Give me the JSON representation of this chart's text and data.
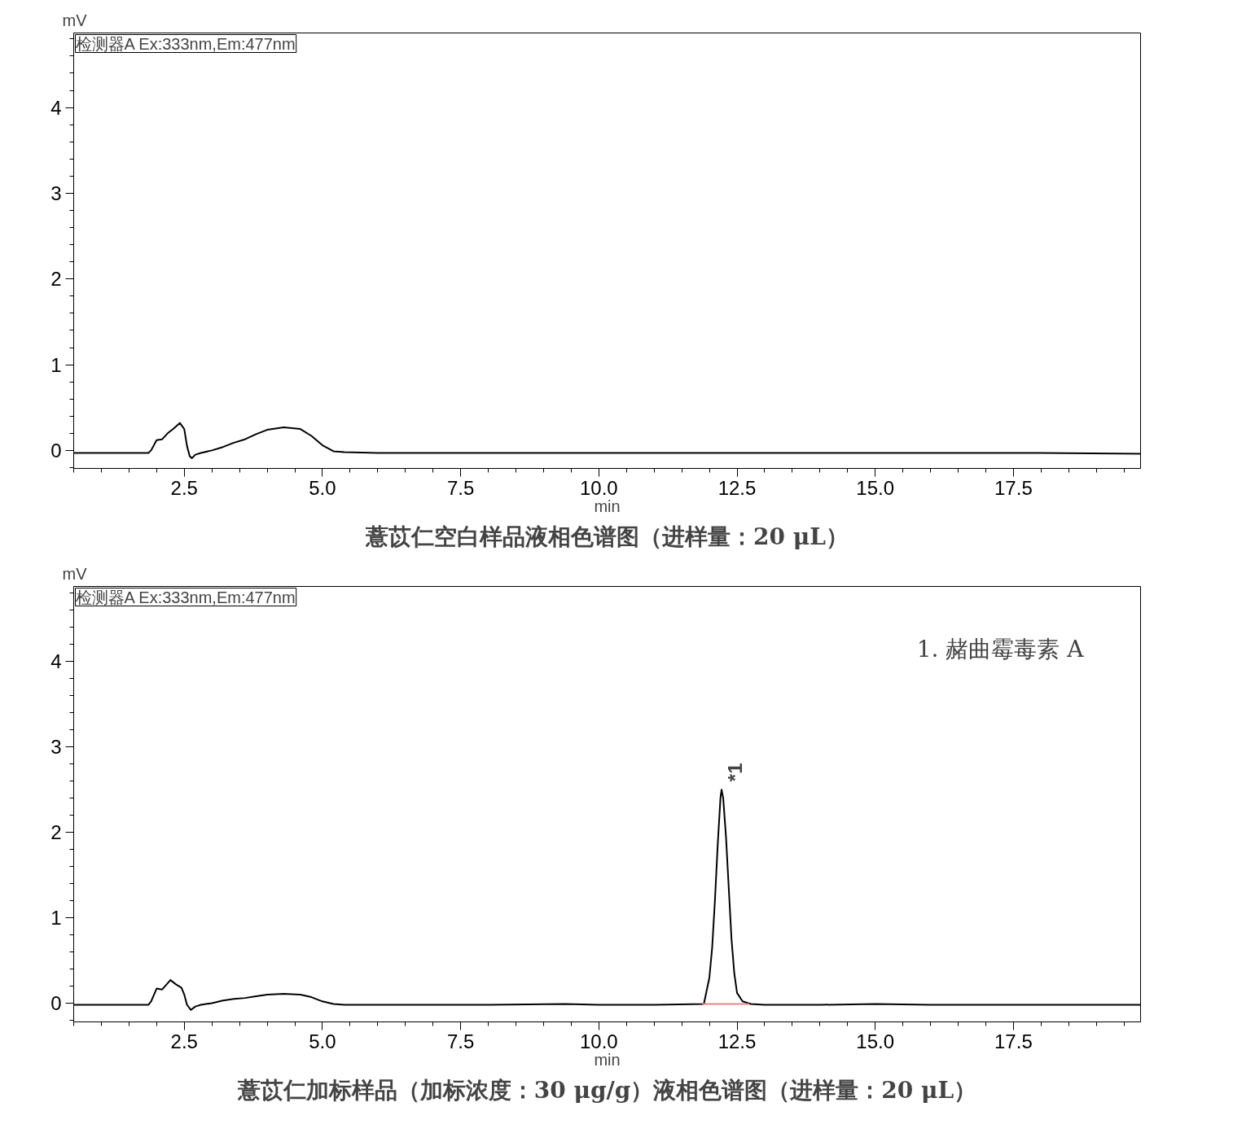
{
  "chart_data": [
    {
      "type": "line",
      "title": "薏苡仁空白样品液相色谱图（进样量：20 μL）",
      "xlabel": "min",
      "ylabel": "mV",
      "annotations": [
        "检测器A Ex:333nm,Em:477nm"
      ],
      "xlim": [
        0.5,
        19.8
      ],
      "ylim": [
        -0.21,
        4.87
      ],
      "xticks": [
        {
          "value": 0.5,
          "label": null
        },
        {
          "value": 1.0,
          "label": null
        },
        {
          "value": 1.5,
          "label": null
        },
        {
          "value": 2.0,
          "label": null
        },
        2.5,
        {
          "value": 3.0,
          "label": null
        },
        {
          "value": 3.5,
          "label": null
        },
        {
          "value": 4.0,
          "label": null
        },
        {
          "value": 4.5,
          "label": null
        },
        {
          "value": 5.0,
          "label": "5.0"
        },
        {
          "value": 5.5,
          "label": null
        },
        {
          "value": 6.0,
          "label": null
        },
        {
          "value": 6.5,
          "label": null
        },
        {
          "value": 7.0,
          "label": null
        },
        7.5,
        {
          "value": 8.0,
          "label": null
        },
        {
          "value": 8.5,
          "label": null
        },
        {
          "value": 9.0,
          "label": null
        },
        {
          "value": 9.5,
          "label": null
        },
        {
          "value": 10.0,
          "label": "10.0"
        },
        {
          "value": 10.5,
          "label": null
        },
        {
          "value": 11.0,
          "label": null
        },
        {
          "value": 11.5,
          "label": null
        },
        {
          "value": 12.0,
          "label": null
        },
        12.5,
        {
          "value": 13.0,
          "label": null
        },
        {
          "value": 13.5,
          "label": null
        },
        {
          "value": 14.0,
          "label": null
        },
        {
          "value": 14.5,
          "label": null
        },
        {
          "value": 15.0,
          "label": "15.0"
        },
        {
          "value": 15.5,
          "label": null
        },
        {
          "value": 16.0,
          "label": null
        },
        {
          "value": 16.5,
          "label": null
        },
        {
          "value": 17.0,
          "label": null
        },
        17.5,
        {
          "value": 18.0,
          "label": null
        },
        {
          "value": 18.5,
          "label": null
        },
        {
          "value": 19.0,
          "label": null
        },
        {
          "value": 19.5,
          "label": null
        }
      ],
      "yticks": [
        {
          "value": -0.2,
          "label": null
        },
        0,
        {
          "value": 0.2,
          "label": null
        },
        {
          "value": 0.4,
          "label": null
        },
        {
          "value": 0.6,
          "label": null
        },
        {
          "value": 0.8,
          "label": null
        },
        1,
        {
          "value": 1.2,
          "label": null
        },
        {
          "value": 1.4,
          "label": null
        },
        {
          "value": 1.6,
          "label": null
        },
        {
          "value": 1.8,
          "label": null
        },
        2,
        {
          "value": 2.2,
          "label": null
        },
        {
          "value": 2.4,
          "label": null
        },
        {
          "value": 2.6,
          "label": null
        },
        {
          "value": 2.8,
          "label": null
        },
        3,
        {
          "value": 3.2,
          "label": null
        },
        {
          "value": 3.4,
          "label": null
        },
        {
          "value": 3.6,
          "label": null
        },
        {
          "value": 3.8,
          "label": null
        },
        4,
        {
          "value": 4.2,
          "label": null
        },
        {
          "value": 4.4,
          "label": null
        },
        {
          "value": 4.6,
          "label": null
        },
        {
          "value": 4.8,
          "label": null
        }
      ],
      "grid": false,
      "marker": "none",
      "line_style": "solid",
      "series": [
        {
          "color": "#000000",
          "x": [
            0.5,
            1.0,
            1.5,
            1.85,
            1.9,
            2.0,
            2.1,
            2.2,
            2.3,
            2.42,
            2.5,
            2.55,
            2.6,
            2.64,
            2.7,
            2.8,
            3.0,
            3.2,
            3.4,
            3.6,
            3.8,
            4.0,
            4.3,
            4.6,
            4.8,
            5.0,
            5.2,
            5.4,
            6.0,
            8.0,
            10.0,
            12.0,
            14.0,
            16.0,
            18.0,
            19.8
          ],
          "values": [
            -0.03,
            -0.03,
            -0.03,
            -0.03,
            0.0,
            0.12,
            0.13,
            0.2,
            0.25,
            0.32,
            0.25,
            0.05,
            -0.07,
            -0.09,
            -0.05,
            -0.03,
            0.0,
            0.04,
            0.09,
            0.13,
            0.19,
            0.24,
            0.27,
            0.25,
            0.17,
            0.06,
            -0.01,
            -0.02,
            -0.03,
            -0.03,
            -0.03,
            -0.03,
            -0.03,
            -0.03,
            -0.03,
            -0.04
          ]
        }
      ]
    },
    {
      "type": "line",
      "title": "薏苡仁加标样品（加标浓度：30 μg/g）液相色谱图（进样量：20 μL）",
      "xlabel": "min",
      "ylabel": "mV",
      "annotations": [
        "检测器A Ex:333nm,Em:477nm",
        "1. 赭曲霉毒素 A",
        {
          "text": "*1",
          "x": 12.22,
          "y": 2.5
        }
      ],
      "xlim": [
        0.5,
        19.8
      ],
      "ylim": [
        -0.22,
        4.88
      ],
      "xticks": [
        {
          "value": 0.5,
          "label": null
        },
        {
          "value": 1.0,
          "label": null
        },
        {
          "value": 1.5,
          "label": null
        },
        {
          "value": 2.0,
          "label": null
        },
        2.5,
        {
          "value": 3.0,
          "label": null
        },
        {
          "value": 3.5,
          "label": null
        },
        {
          "value": 4.0,
          "label": null
        },
        {
          "value": 4.5,
          "label": null
        },
        {
          "value": 5.0,
          "label": "5.0"
        },
        {
          "value": 5.5,
          "label": null
        },
        {
          "value": 6.0,
          "label": null
        },
        {
          "value": 6.5,
          "label": null
        },
        {
          "value": 7.0,
          "label": null
        },
        7.5,
        {
          "value": 8.0,
          "label": null
        },
        {
          "value": 8.5,
          "label": null
        },
        {
          "value": 9.0,
          "label": null
        },
        {
          "value": 9.5,
          "label": null
        },
        {
          "value": 10.0,
          "label": "10.0"
        },
        {
          "value": 10.5,
          "label": null
        },
        {
          "value": 11.0,
          "label": null
        },
        {
          "value": 11.5,
          "label": null
        },
        {
          "value": 12.0,
          "label": null
        },
        12.5,
        {
          "value": 13.0,
          "label": null
        },
        {
          "value": 13.5,
          "label": null
        },
        {
          "value": 14.0,
          "label": null
        },
        {
          "value": 14.5,
          "label": null
        },
        {
          "value": 15.0,
          "label": "15.0"
        },
        {
          "value": 15.5,
          "label": null
        },
        {
          "value": 16.0,
          "label": null
        },
        {
          "value": 16.5,
          "label": null
        },
        {
          "value": 17.0,
          "label": null
        },
        17.5,
        {
          "value": 18.0,
          "label": null
        },
        {
          "value": 18.5,
          "label": null
        },
        {
          "value": 19.0,
          "label": null
        },
        {
          "value": 19.5,
          "label": null
        }
      ],
      "yticks": [
        {
          "value": -0.2,
          "label": null
        },
        0,
        {
          "value": 0.2,
          "label": null
        },
        {
          "value": 0.4,
          "label": null
        },
        {
          "value": 0.6,
          "label": null
        },
        {
          "value": 0.8,
          "label": null
        },
        1,
        {
          "value": 1.2,
          "label": null
        },
        {
          "value": 1.4,
          "label": null
        },
        {
          "value": 1.6,
          "label": null
        },
        {
          "value": 1.8,
          "label": null
        },
        2,
        {
          "value": 2.2,
          "label": null
        },
        {
          "value": 2.4,
          "label": null
        },
        {
          "value": 2.6,
          "label": null
        },
        {
          "value": 2.8,
          "label": null
        },
        3,
        {
          "value": 3.2,
          "label": null
        },
        {
          "value": 3.4,
          "label": null
        },
        {
          "value": 3.6,
          "label": null
        },
        {
          "value": 3.8,
          "label": null
        },
        4,
        {
          "value": 4.2,
          "label": null
        },
        {
          "value": 4.4,
          "label": null
        },
        {
          "value": 4.6,
          "label": null
        },
        {
          "value": 4.8,
          "label": null
        }
      ],
      "grid": false,
      "marker": "none",
      "line_style": "solid",
      "series": [
        {
          "color": "#000000",
          "x": [
            0.5,
            1.0,
            1.5,
            1.85,
            1.9,
            2.0,
            2.1,
            2.25,
            2.35,
            2.45,
            2.5,
            2.55,
            2.62,
            2.7,
            2.8,
            3.0,
            3.2,
            3.4,
            3.6,
            3.8,
            4.0,
            4.3,
            4.6,
            4.8,
            5.0,
            5.2,
            5.4,
            6.0,
            8.0,
            9.4,
            10.0,
            11.0,
            11.9,
            12.0,
            12.05,
            12.1,
            12.15,
            12.2,
            12.22,
            12.25,
            12.3,
            12.35,
            12.4,
            12.45,
            12.5,
            12.6,
            12.75,
            13.0,
            14.0,
            15.0,
            16.0,
            18.0,
            19.8
          ],
          "values": [
            -0.02,
            -0.02,
            -0.02,
            -0.02,
            0.02,
            0.17,
            0.16,
            0.27,
            0.22,
            0.18,
            0.1,
            -0.02,
            -0.08,
            -0.04,
            -0.02,
            0.0,
            0.03,
            0.05,
            0.06,
            0.08,
            0.1,
            0.11,
            0.1,
            0.07,
            0.02,
            -0.01,
            -0.02,
            -0.02,
            -0.02,
            -0.01,
            -0.02,
            -0.02,
            -0.01,
            0.3,
            0.65,
            1.2,
            1.85,
            2.4,
            2.5,
            2.4,
            1.95,
            1.35,
            0.75,
            0.35,
            0.12,
            0.02,
            -0.01,
            -0.02,
            -0.02,
            -0.01,
            -0.02,
            -0.02,
            -0.02
          ]
        },
        {
          "color": "#f08080",
          "x": [
            11.87,
            12.72
          ],
          "values": [
            -0.01,
            -0.01
          ]
        }
      ]
    }
  ]
}
